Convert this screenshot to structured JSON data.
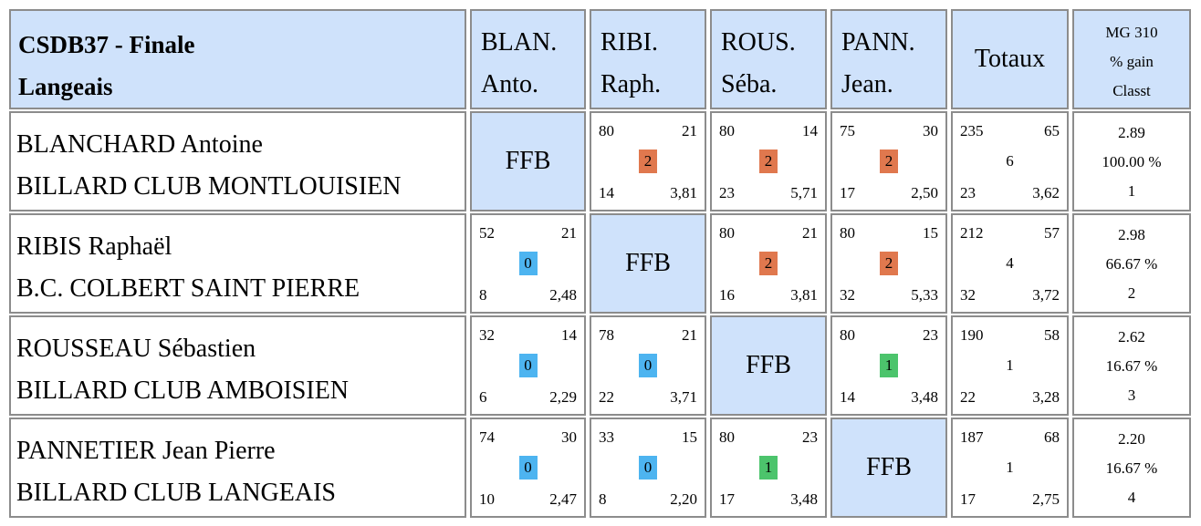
{
  "header": {
    "title_line1": "CSDB37 - Finale",
    "title_line2": "Langeais",
    "players": [
      {
        "line1": "BLAN.",
        "line2": "Anto."
      },
      {
        "line1": "RIBI.",
        "line2": "Raph."
      },
      {
        "line1": "ROUS.",
        "line2": "Séba."
      },
      {
        "line1": "PANN.",
        "line2": "Jean."
      }
    ],
    "totals_label": "Totaux",
    "mg_label": "MG 310",
    "gain_label": "% gain",
    "classt_label": "Classt"
  },
  "ffb_label": "FFB",
  "colors": {
    "header_bg": "#cfe2fb",
    "win": "#e0784e",
    "loss": "#4db4f0",
    "draw": "#4cc46c",
    "border": "#8c8c8c"
  },
  "rows": [
    {
      "name": "BLANCHARD Antoine",
      "club": "BILLARD CLUB MONTLOUISIEN",
      "matches": [
        null,
        {
          "pts": "80",
          "serie": "21",
          "res": "2",
          "rep": "14",
          "moy": "3,81"
        },
        {
          "pts": "80",
          "serie": "14",
          "res": "2",
          "rep": "23",
          "moy": "5,71"
        },
        {
          "pts": "75",
          "serie": "30",
          "res": "2",
          "rep": "17",
          "moy": "2,50"
        }
      ],
      "totals": {
        "pts": "235",
        "serie": "65",
        "mp": "6",
        "rep": "23",
        "moy": "3,62"
      },
      "mg": {
        "mg": "2.89",
        "pct": "100.00 %",
        "rank": "1"
      }
    },
    {
      "name": "RIBIS Raphaël",
      "club": "B.C. COLBERT SAINT PIERRE",
      "matches": [
        {
          "pts": "52",
          "serie": "21",
          "res": "0",
          "rep": "8",
          "moy": "2,48"
        },
        null,
        {
          "pts": "80",
          "serie": "21",
          "res": "2",
          "rep": "16",
          "moy": "3,81"
        },
        {
          "pts": "80",
          "serie": "15",
          "res": "2",
          "rep": "32",
          "moy": "5,33"
        }
      ],
      "totals": {
        "pts": "212",
        "serie": "57",
        "mp": "4",
        "rep": "32",
        "moy": "3,72"
      },
      "mg": {
        "mg": "2.98",
        "pct": "66.67 %",
        "rank": "2"
      }
    },
    {
      "name": "ROUSSEAU Sébastien",
      "club": "BILLARD CLUB AMBOISIEN",
      "matches": [
        {
          "pts": "32",
          "serie": "14",
          "res": "0",
          "rep": "6",
          "moy": "2,29"
        },
        {
          "pts": "78",
          "serie": "21",
          "res": "0",
          "rep": "22",
          "moy": "3,71"
        },
        null,
        {
          "pts": "80",
          "serie": "23",
          "res": "1",
          "rep": "14",
          "moy": "3,48"
        }
      ],
      "totals": {
        "pts": "190",
        "serie": "58",
        "mp": "1",
        "rep": "22",
        "moy": "3,28"
      },
      "mg": {
        "mg": "2.62",
        "pct": "16.67 %",
        "rank": "3"
      }
    },
    {
      "name": "PANNETIER Jean Pierre",
      "club": "BILLARD CLUB LANGEAIS",
      "matches": [
        {
          "pts": "74",
          "serie": "30",
          "res": "0",
          "rep": "10",
          "moy": "2,47"
        },
        {
          "pts": "33",
          "serie": "15",
          "res": "0",
          "rep": "8",
          "moy": "2,20"
        },
        {
          "pts": "80",
          "serie": "23",
          "res": "1",
          "rep": "17",
          "moy": "3,48"
        },
        null
      ],
      "totals": {
        "pts": "187",
        "serie": "68",
        "mp": "1",
        "rep": "17",
        "moy": "2,75"
      },
      "mg": {
        "mg": "2.20",
        "pct": "16.67 %",
        "rank": "4"
      }
    }
  ]
}
